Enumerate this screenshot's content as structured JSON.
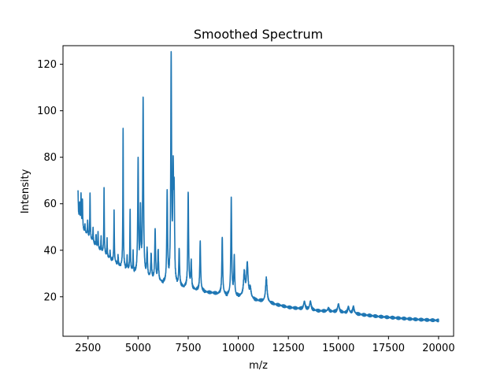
{
  "chart_data": {
    "type": "line",
    "title": "Smoothed Spectrum",
    "xlabel": "m/z",
    "ylabel": "Intensity",
    "xlim": [
      1250,
      20750
    ],
    "ylim": [
      3,
      128
    ],
    "xticks": [
      2500,
      5000,
      7500,
      10000,
      12500,
      15000,
      17500,
      20000
    ],
    "yticks": [
      20,
      40,
      60,
      80,
      100,
      120
    ],
    "grid": false,
    "legend": "none",
    "line_color": "#1f77b4",
    "series": [
      {
        "baseline": [
          [
            2000,
            55
          ],
          [
            2200,
            50
          ],
          [
            2500,
            46
          ],
          [
            3000,
            41
          ],
          [
            3500,
            37
          ],
          [
            4000,
            34
          ],
          [
            4500,
            32
          ],
          [
            5000,
            30
          ],
          [
            5500,
            28.5
          ],
          [
            6000,
            27
          ],
          [
            6500,
            26
          ],
          [
            7000,
            25
          ],
          [
            7500,
            24
          ],
          [
            8000,
            23
          ],
          [
            8500,
            22
          ],
          [
            9000,
            21.5
          ],
          [
            9500,
            21
          ],
          [
            10000,
            20.5
          ],
          [
            10500,
            19.5
          ],
          [
            11000,
            18.5
          ],
          [
            11500,
            17.5
          ],
          [
            12000,
            16.5
          ],
          [
            12500,
            15.5
          ],
          [
            13000,
            15
          ],
          [
            14000,
            14
          ],
          [
            15000,
            13.5
          ],
          [
            16000,
            12.5
          ],
          [
            17000,
            11.5
          ],
          [
            18000,
            10.8
          ],
          [
            19000,
            10.2
          ],
          [
            20000,
            9.8
          ]
        ],
        "peaks": [
          [
            2000,
            65
          ],
          [
            2080,
            60
          ],
          [
            2150,
            64
          ],
          [
            2220,
            62
          ],
          [
            2350,
            51
          ],
          [
            2480,
            53
          ],
          [
            2600,
            65
          ],
          [
            2750,
            50
          ],
          [
            2900,
            47
          ],
          [
            3000,
            48
          ],
          [
            3150,
            46
          ],
          [
            3300,
            67
          ],
          [
            3450,
            45
          ],
          [
            3600,
            40
          ],
          [
            3800,
            57
          ],
          [
            4000,
            38
          ],
          [
            4250,
            93
          ],
          [
            4450,
            38
          ],
          [
            4600,
            58
          ],
          [
            4750,
            40
          ],
          [
            5000,
            79
          ],
          [
            5120,
            56
          ],
          [
            5250,
            105
          ],
          [
            5450,
            41
          ],
          [
            5650,
            39
          ],
          [
            5850,
            49
          ],
          [
            6000,
            40
          ],
          [
            6450,
            66
          ],
          [
            6650,
            122
          ],
          [
            6750,
            69
          ],
          [
            6800,
            60
          ],
          [
            7050,
            41
          ],
          [
            7500,
            65
          ],
          [
            7650,
            35
          ],
          [
            8100,
            44
          ],
          [
            9200,
            46
          ],
          [
            9650,
            62
          ],
          [
            9800,
            37
          ],
          [
            10300,
            30
          ],
          [
            10450,
            34
          ],
          [
            10600,
            23
          ],
          [
            11400,
            28
          ],
          [
            13300,
            18
          ],
          [
            13600,
            18
          ],
          [
            14500,
            15
          ],
          [
            15000,
            17
          ],
          [
            15500,
            15.5
          ],
          [
            15750,
            15.5
          ]
        ]
      }
    ]
  }
}
